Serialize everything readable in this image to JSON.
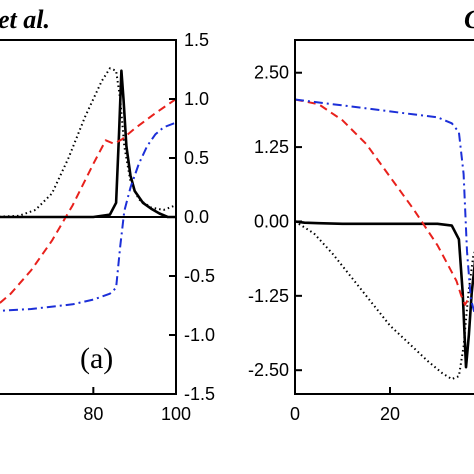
{
  "header": {
    "left_text": "et al.",
    "right_text": "C"
  },
  "chart_data": [
    {
      "type": "line",
      "panel_label": "(a)",
      "x_tick_labels": [
        "80",
        "100"
      ],
      "x_ticks": [
        80,
        100
      ],
      "xlim": [
        55,
        100
      ],
      "y_right_tick_labels": [
        "1.5",
        "1.0",
        "0.5",
        "0.0",
        "-0.5",
        "-1.0",
        "-1.5"
      ],
      "y_right_ticks": [
        1.5,
        1.0,
        0.5,
        0.0,
        -0.5,
        -1.0,
        -1.5
      ],
      "ylim": [
        -1.5,
        1.5
      ],
      "grid": false,
      "series": [
        {
          "style": "solid",
          "color": "#000000",
          "x": [
            55,
            70,
            80,
            84,
            85.5,
            86.2,
            86.8,
            87.3,
            88,
            89,
            90,
            92,
            94,
            96,
            98,
            100
          ],
          "y": [
            0,
            0,
            0,
            0.02,
            0.12,
            0.7,
            1.24,
            1.0,
            0.6,
            0.35,
            0.22,
            0.12,
            0.07,
            0.03,
            0.0,
            0.0
          ]
        },
        {
          "style": "dotted",
          "color": "#000000",
          "x": [
            55,
            62,
            66,
            70,
            74,
            78,
            82,
            84,
            85.5,
            86.5,
            87.5,
            89,
            91,
            94,
            97,
            100
          ],
          "y": [
            0,
            0.01,
            0.06,
            0.2,
            0.5,
            0.85,
            1.15,
            1.26,
            1.24,
            1.0,
            0.6,
            0.3,
            0.15,
            0.08,
            0.06,
            0.1
          ]
        },
        {
          "style": "dashed",
          "color": "#e8211c",
          "x": [
            55,
            60,
            65,
            70,
            75,
            80,
            83,
            85,
            87,
            90,
            95,
            100
          ],
          "y": [
            -0.8,
            -0.65,
            -0.45,
            -0.2,
            0.1,
            0.45,
            0.65,
            0.62,
            0.66,
            0.75,
            0.88,
            1.0
          ]
        },
        {
          "style": "dashdot",
          "color": "#1c2fd8",
          "x": [
            55,
            65,
            75,
            80,
            84,
            85.5,
            86.5,
            87.5,
            89,
            91,
            93,
            95,
            97,
            100
          ],
          "y": [
            -0.8,
            -0.78,
            -0.74,
            -0.7,
            -0.65,
            -0.6,
            -0.25,
            0.05,
            0.25,
            0.45,
            0.6,
            0.7,
            0.76,
            0.8
          ]
        }
      ]
    },
    {
      "type": "line",
      "x_tick_labels": [
        "0",
        "20"
      ],
      "x_ticks": [
        0,
        20
      ],
      "xlim": [
        0,
        40
      ],
      "y_left_tick_labels": [
        "2.50",
        "1.25",
        "0.00",
        "-1.25",
        "-2.50"
      ],
      "y_left_ticks": [
        2.5,
        1.25,
        0.0,
        -1.25,
        -2.5
      ],
      "ylim": [
        -2.9,
        3.05
      ],
      "grid": false,
      "series": [
        {
          "style": "solid",
          "color": "#000000",
          "x": [
            0,
            2,
            5,
            10,
            15,
            20,
            25,
            30,
            33,
            34.5,
            35.3,
            36,
            36.6,
            37.2,
            38,
            39,
            40
          ],
          "y": [
            0.0,
            -0.02,
            -0.03,
            -0.04,
            -0.04,
            -0.04,
            -0.04,
            -0.04,
            -0.07,
            -0.3,
            -1.2,
            -2.45,
            -1.9,
            -1.2,
            -0.6,
            -0.2,
            0.0
          ]
        },
        {
          "style": "dotted",
          "color": "#000000",
          "x": [
            0,
            4,
            8,
            12,
            16,
            20,
            24,
            28,
            31,
            33,
            34.5,
            35.5,
            36.5,
            37.5,
            39,
            40
          ],
          "y": [
            0.0,
            -0.2,
            -0.55,
            -0.95,
            -1.35,
            -1.75,
            -2.05,
            -2.35,
            -2.55,
            -2.65,
            -2.6,
            -2.1,
            -1.2,
            -0.6,
            -0.2,
            0.0
          ]
        },
        {
          "style": "dashed",
          "color": "#e8211c",
          "x": [
            0,
            5,
            10,
            15,
            20,
            25,
            30,
            32,
            34,
            35,
            35.8,
            36.5
          ],
          "y": [
            2.05,
            1.97,
            1.7,
            1.3,
            0.75,
            0.2,
            -0.4,
            -0.7,
            -1.0,
            -1.25,
            -1.4,
            -1.3
          ]
        },
        {
          "style": "dashdot",
          "color": "#1c2fd8",
          "x": [
            0,
            5,
            10,
            15,
            20,
            25,
            30,
            33,
            34.5,
            35.5,
            36.2,
            37,
            38,
            39
          ],
          "y": [
            2.05,
            2.0,
            1.95,
            1.9,
            1.85,
            1.8,
            1.75,
            1.65,
            1.5,
            0.8,
            -0.5,
            -1.3,
            -1.6,
            -1.5
          ]
        }
      ]
    }
  ]
}
